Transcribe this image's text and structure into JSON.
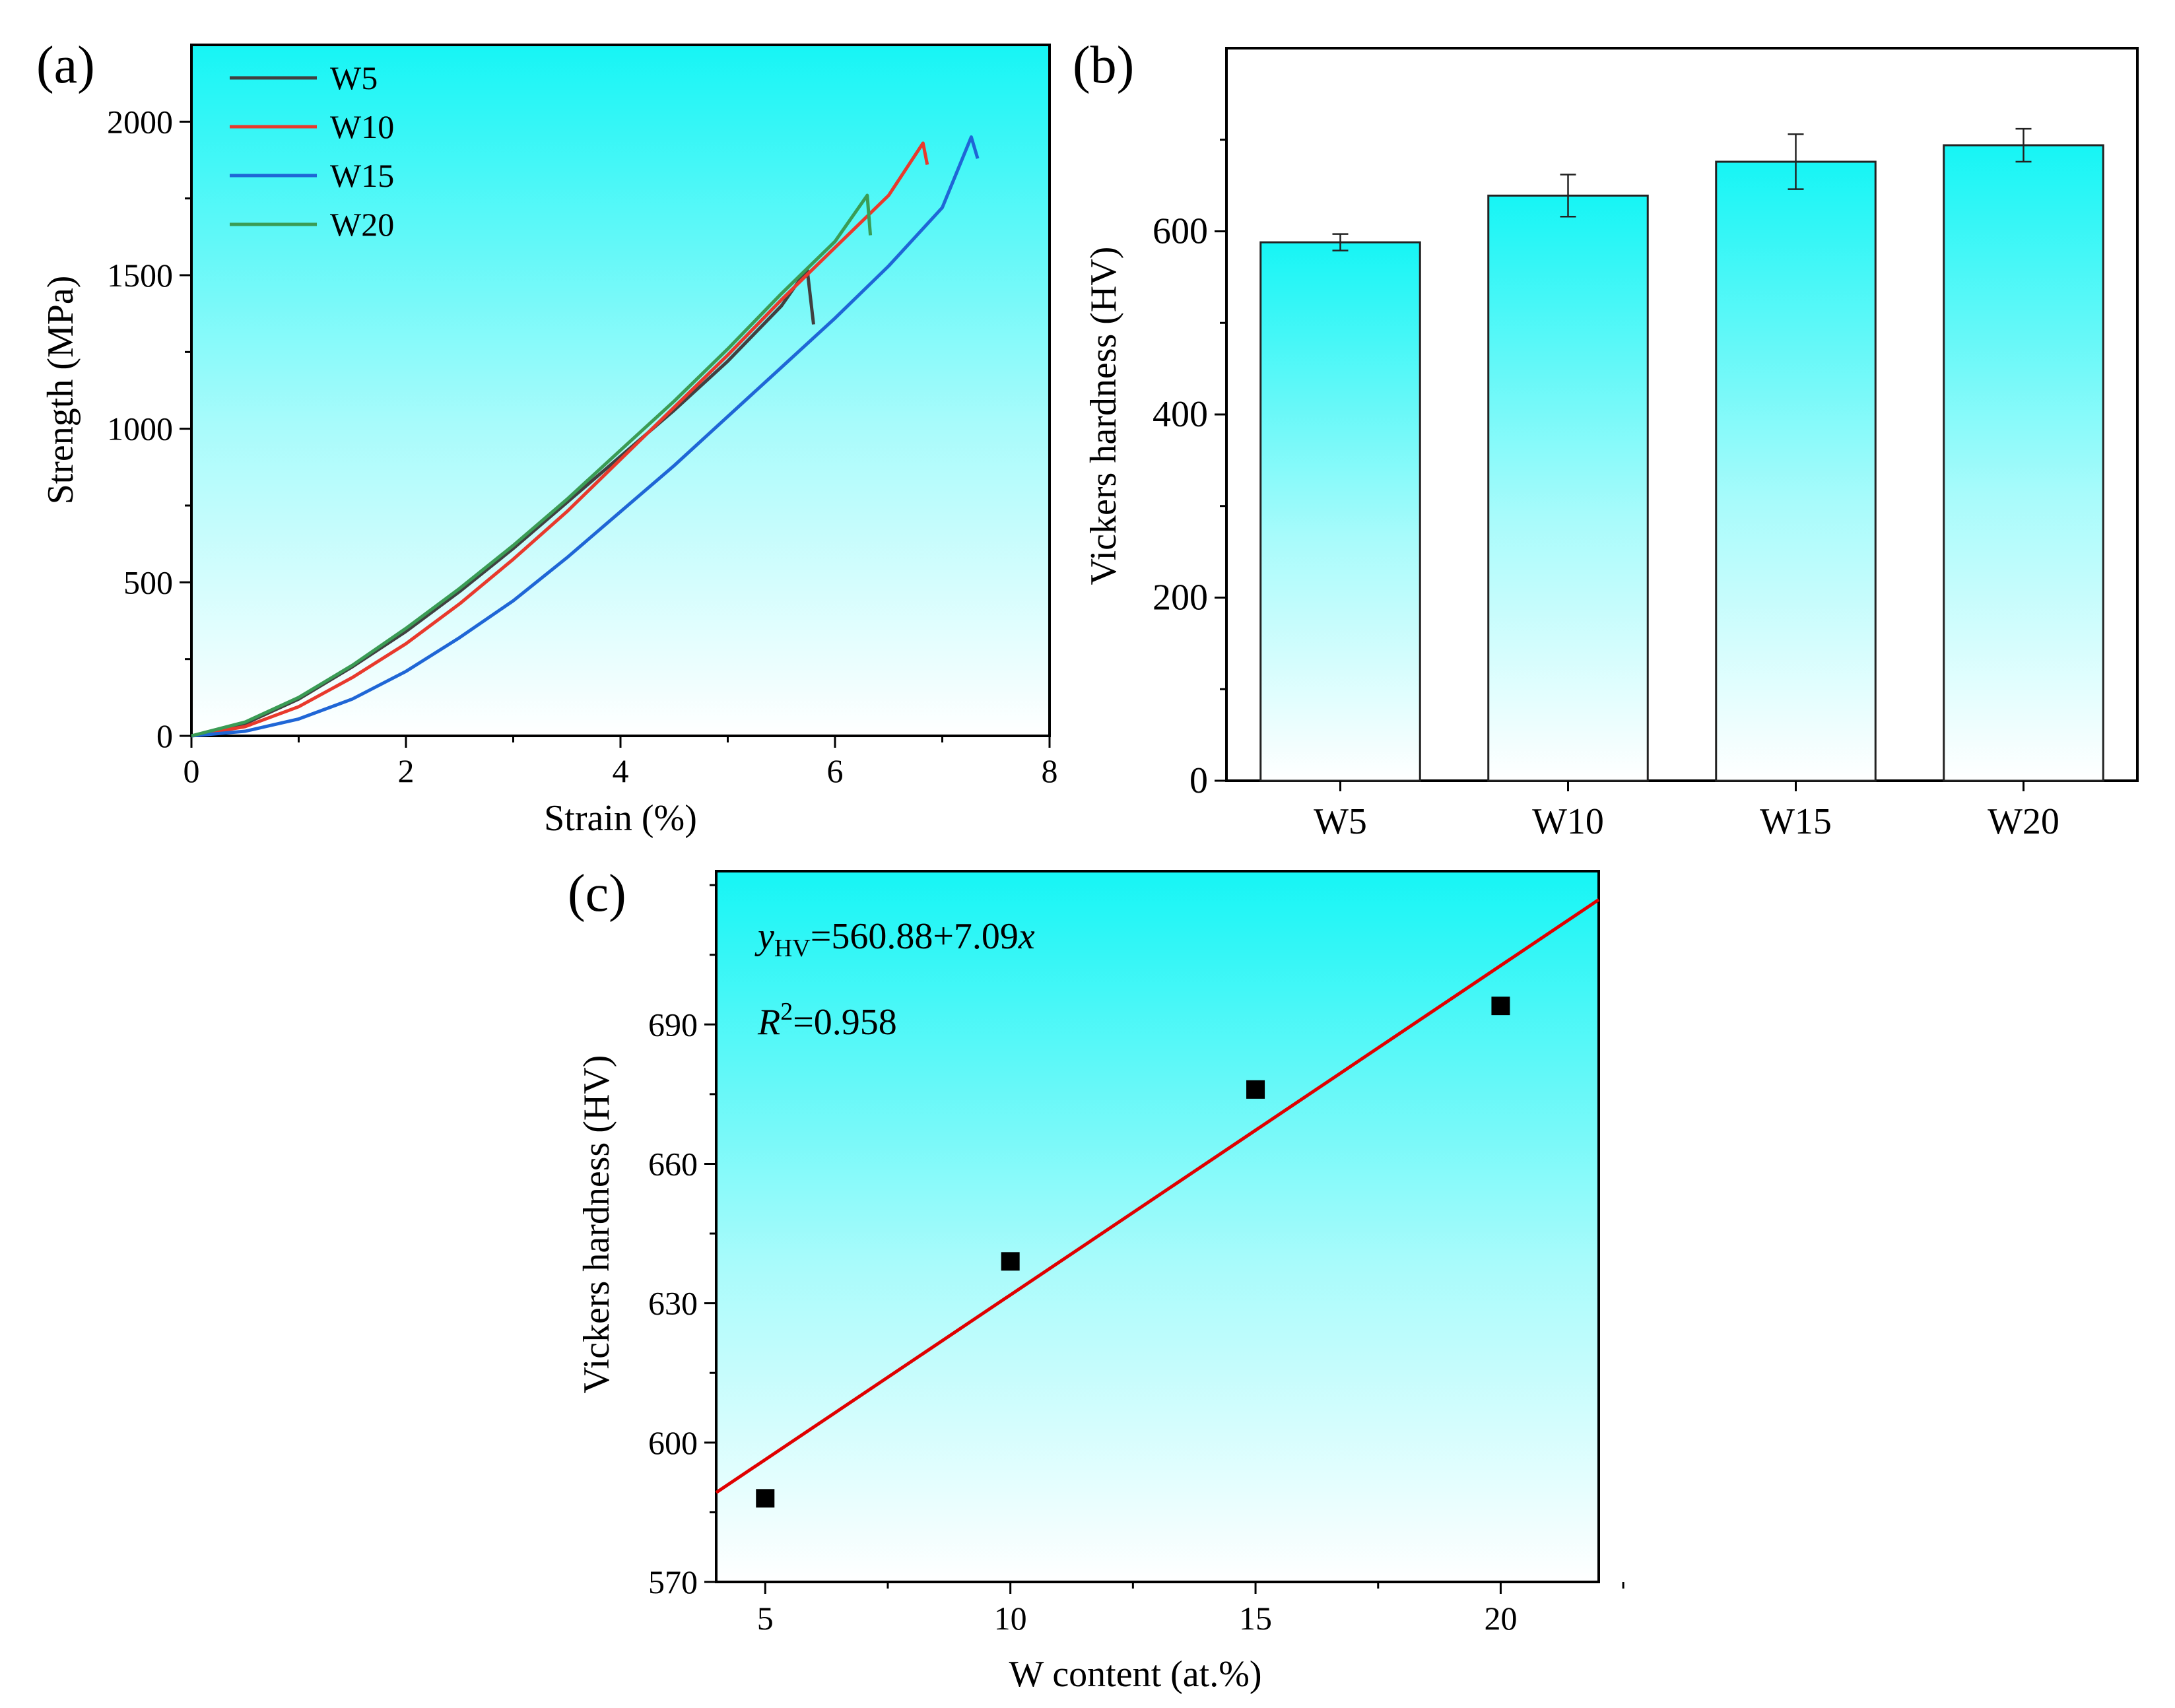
{
  "chart_data": [
    {
      "panel": "(a)",
      "type": "line",
      "xlabel": "Strain (%)",
      "ylabel": "Strength (MPa)",
      "xlim": [
        0,
        8
      ],
      "ylim": [
        0,
        2250
      ],
      "xticks": [
        0,
        2,
        4,
        6,
        8
      ],
      "yticks": [
        0,
        500,
        1000,
        1500,
        2000
      ],
      "background": "gradient-cyan-to-white",
      "legend": {
        "position": "top-left"
      },
      "series": [
        {
          "name": "W5",
          "color": "#404040",
          "points": [
            [
              0,
              0
            ],
            [
              0.5,
              40
            ],
            [
              1,
              120
            ],
            [
              1.5,
              225
            ],
            [
              2,
              340
            ],
            [
              2.5,
              470
            ],
            [
              3,
              610
            ],
            [
              3.5,
              760
            ],
            [
              4,
              910
            ],
            [
              4.5,
              1060
            ],
            [
              5,
              1220
            ],
            [
              5.5,
              1400
            ],
            [
              5.74,
              1520
            ],
            [
              5.8,
              1340
            ]
          ]
        },
        {
          "name": "W10",
          "color": "#e8392c",
          "points": [
            [
              0,
              0
            ],
            [
              0.5,
              30
            ],
            [
              1,
              95
            ],
            [
              1.5,
              190
            ],
            [
              2,
              300
            ],
            [
              2.5,
              430
            ],
            [
              3,
              575
            ],
            [
              3.5,
              730
            ],
            [
              4,
              900
            ],
            [
              4.5,
              1070
            ],
            [
              5,
              1240
            ],
            [
              5.5,
              1420
            ],
            [
              6,
              1590
            ],
            [
              6.5,
              1760
            ],
            [
              6.82,
              1930
            ],
            [
              6.86,
              1860
            ]
          ]
        },
        {
          "name": "W15",
          "color": "#1f66d6",
          "points": [
            [
              0,
              0
            ],
            [
              0.5,
              15
            ],
            [
              1,
              55
            ],
            [
              1.5,
              120
            ],
            [
              2,
              210
            ],
            [
              2.5,
              320
            ],
            [
              3,
              440
            ],
            [
              3.5,
              580
            ],
            [
              4,
              730
            ],
            [
              4.5,
              880
            ],
            [
              5,
              1040
            ],
            [
              5.5,
              1200
            ],
            [
              6,
              1360
            ],
            [
              6.5,
              1530
            ],
            [
              7,
              1720
            ],
            [
              7.27,
              1950
            ],
            [
              7.33,
              1880
            ]
          ]
        },
        {
          "name": "W20",
          "color": "#3a9c55",
          "points": [
            [
              0,
              0
            ],
            [
              0.5,
              45
            ],
            [
              1,
              125
            ],
            [
              1.5,
              230
            ],
            [
              2,
              350
            ],
            [
              2.5,
              480
            ],
            [
              3,
              620
            ],
            [
              3.5,
              770
            ],
            [
              4,
              930
            ],
            [
              4.5,
              1090
            ],
            [
              5,
              1260
            ],
            [
              5.5,
              1440
            ],
            [
              6,
              1610
            ],
            [
              6.3,
              1760
            ],
            [
              6.33,
              1630
            ]
          ]
        }
      ]
    },
    {
      "panel": "(b)",
      "type": "bar",
      "xlabel": "",
      "ylabel": "Vickers hardness (HV)",
      "ylim": [
        0,
        800
      ],
      "yticks": [
        0,
        200,
        400,
        600
      ],
      "categories": [
        "W5",
        "W10",
        "W15",
        "W20"
      ],
      "values": [
        588,
        639,
        676,
        694
      ],
      "errors": [
        9,
        23,
        30,
        18
      ],
      "bar_fill": "gradient-cyan-to-white"
    },
    {
      "panel": "(c)",
      "type": "scatter",
      "xlabel": "W content (at.%)",
      "ylabel": "Vickers hardness (HV)",
      "xlim": [
        4,
        22
      ],
      "ylim": [
        570,
        723
      ],
      "xticks": [
        5,
        10,
        15,
        20
      ],
      "yticks": [
        570,
        600,
        630,
        660,
        690
      ],
      "x": [
        5,
        10,
        15,
        20
      ],
      "y": [
        588,
        639,
        676,
        694
      ],
      "marker_color": "#000000",
      "fit": {
        "intercept": 560.88,
        "slope": 7.09,
        "color": "#e00000"
      },
      "equation_parts": [
        "y",
        "HV",
        "=560.88+7.09",
        "x"
      ],
      "r2_parts": [
        "R",
        "2",
        "=0.958"
      ]
    }
  ]
}
